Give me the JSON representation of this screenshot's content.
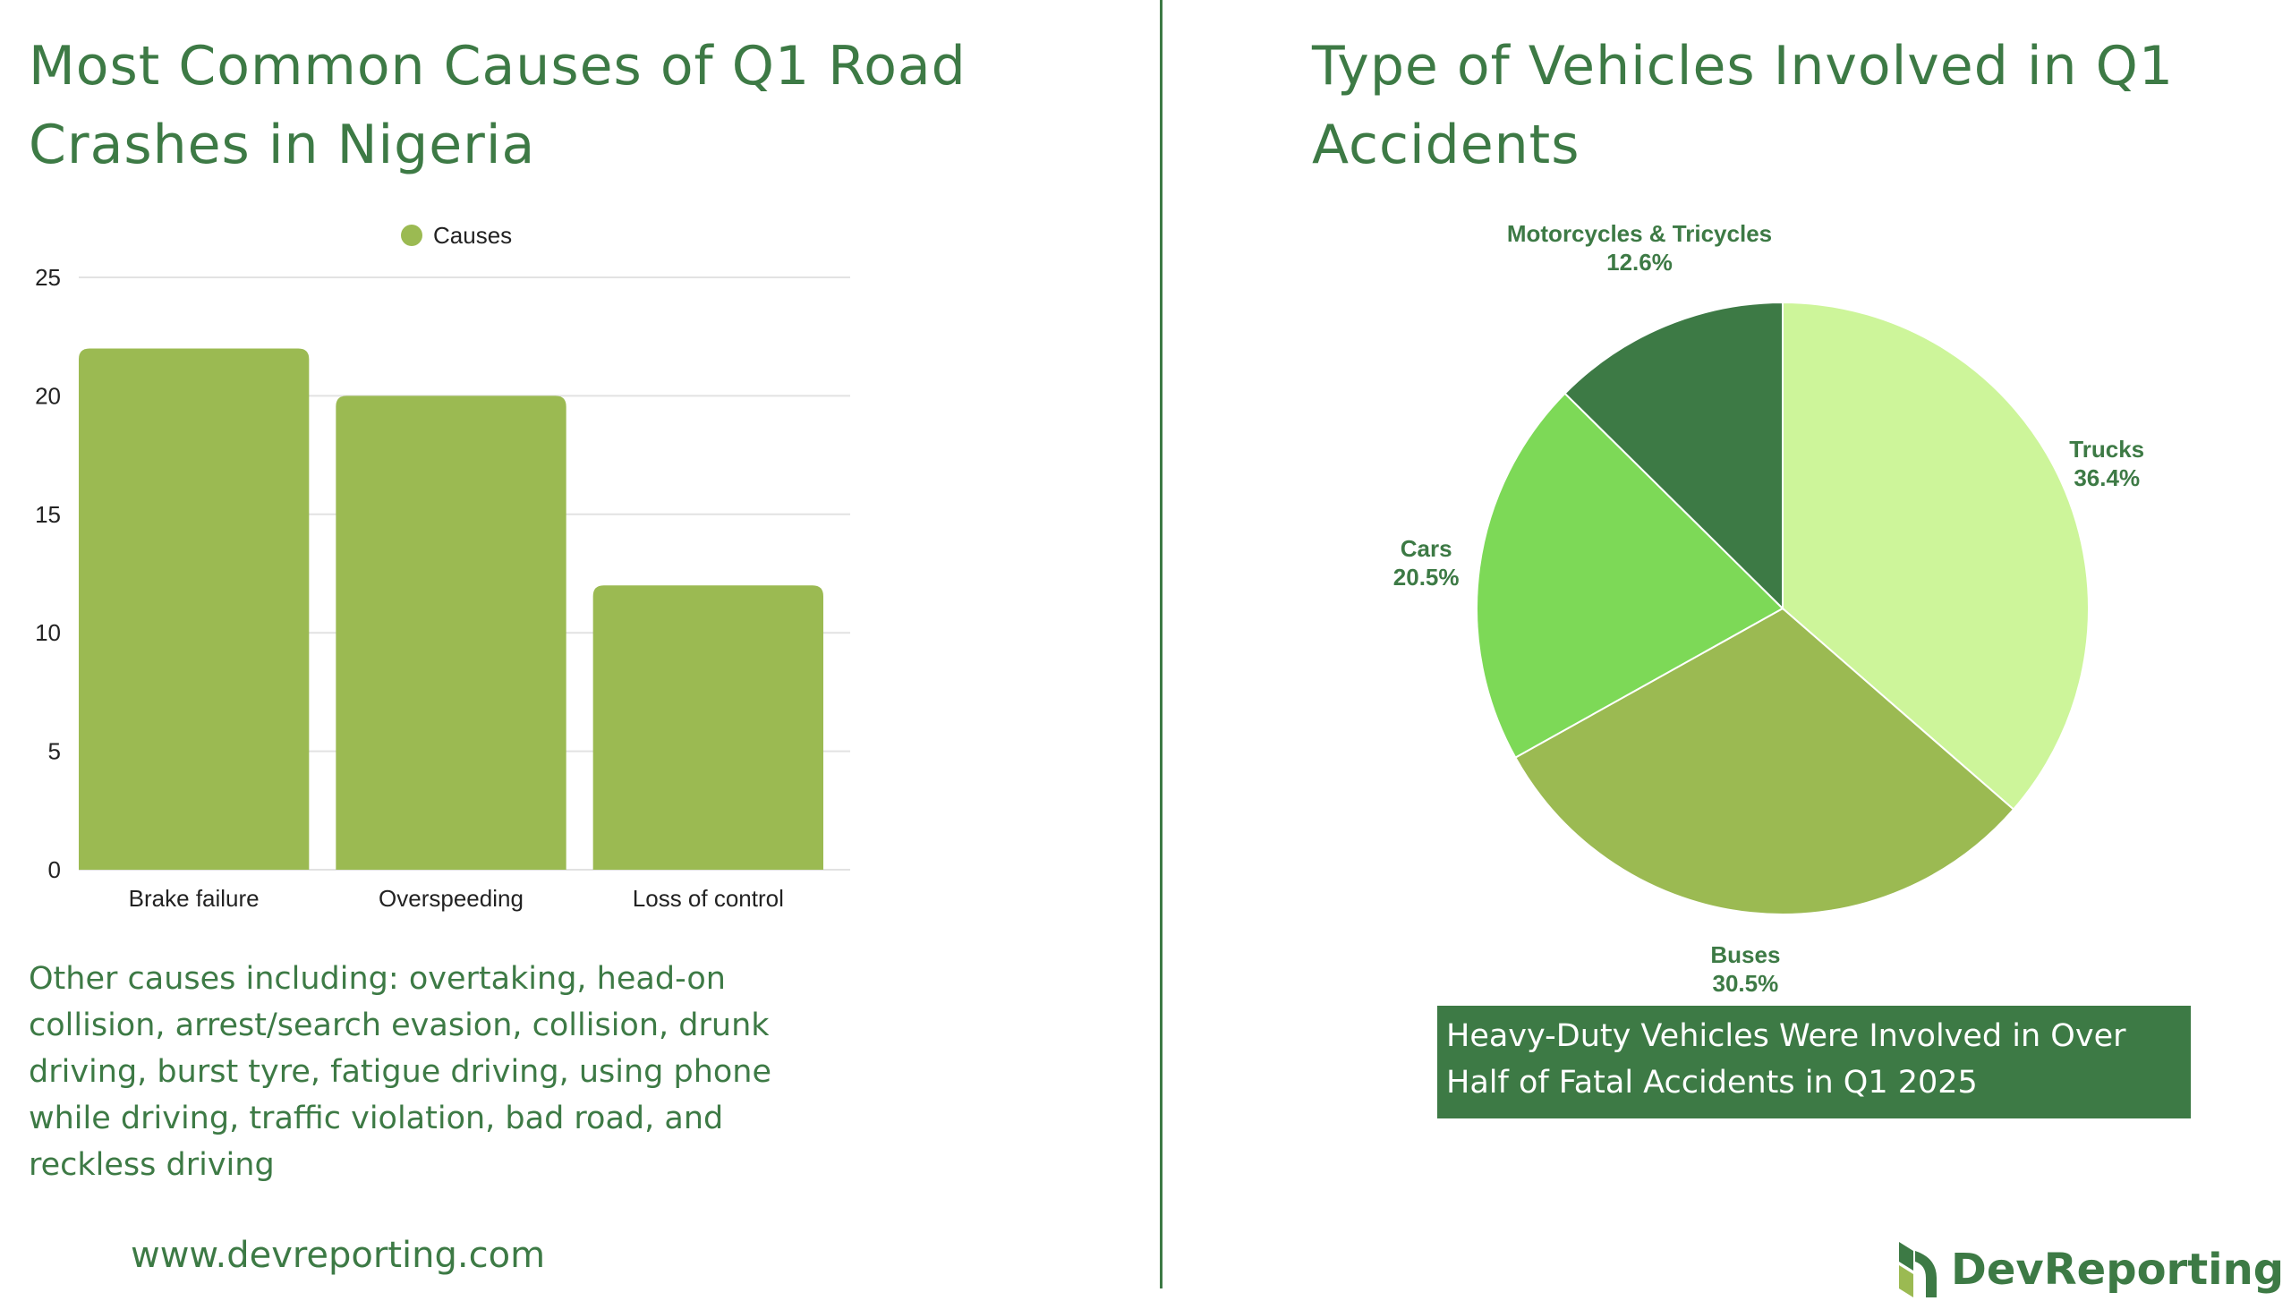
{
  "left": {
    "title": "Most Common Causes of Q1 Road Crashes in Nigeria",
    "note": "Other causes including: overtaking, head-on collision, arrest/search evasion, collision, drunk driving, burst tyre, fatigue driving, using phone while driving, traffic violation, bad road, and reckless driving",
    "website": "www.devreporting.com"
  },
  "right": {
    "title": "Type of Vehicles Involved in Q1 Accidents",
    "banner": "Heavy-Duty Vehicles Were Involved in Over Half of Fatal Accidents in Q1 2025",
    "brand": "DevReporting"
  },
  "colors": {
    "brand_green": "#3d7a45",
    "bar": "#9bba52",
    "grid": "#e2e2e2"
  },
  "chart_data": [
    {
      "type": "bar",
      "title": "Most Common Causes of Q1 Road Crashes in Nigeria",
      "categories": [
        "Brake failure",
        "Overspeeding",
        "Loss of control"
      ],
      "series": [
        {
          "name": "Causes",
          "values": [
            22,
            20,
            12
          ],
          "color": "#9bba52"
        }
      ],
      "ylim": [
        0,
        25
      ],
      "yticks": [
        0,
        5,
        10,
        15,
        20,
        25
      ],
      "legend": "top-center",
      "grid": true
    },
    {
      "type": "pie",
      "title": "Type of Vehicles Involved in Q1 Accidents",
      "slices": [
        {
          "label": "Trucks",
          "value": 36.4,
          "display": "36.4%",
          "color": "#cdf59a"
        },
        {
          "label": "Buses",
          "value": 30.5,
          "display": "30.5%",
          "color": "#9bba52"
        },
        {
          "label": "Cars",
          "value": 20.5,
          "display": "20.5%",
          "color": "#7dd957"
        },
        {
          "label": "Motorcycles & Tricycles",
          "value": 12.6,
          "display": "12.6%",
          "color": "#3d7a45"
        }
      ]
    }
  ]
}
